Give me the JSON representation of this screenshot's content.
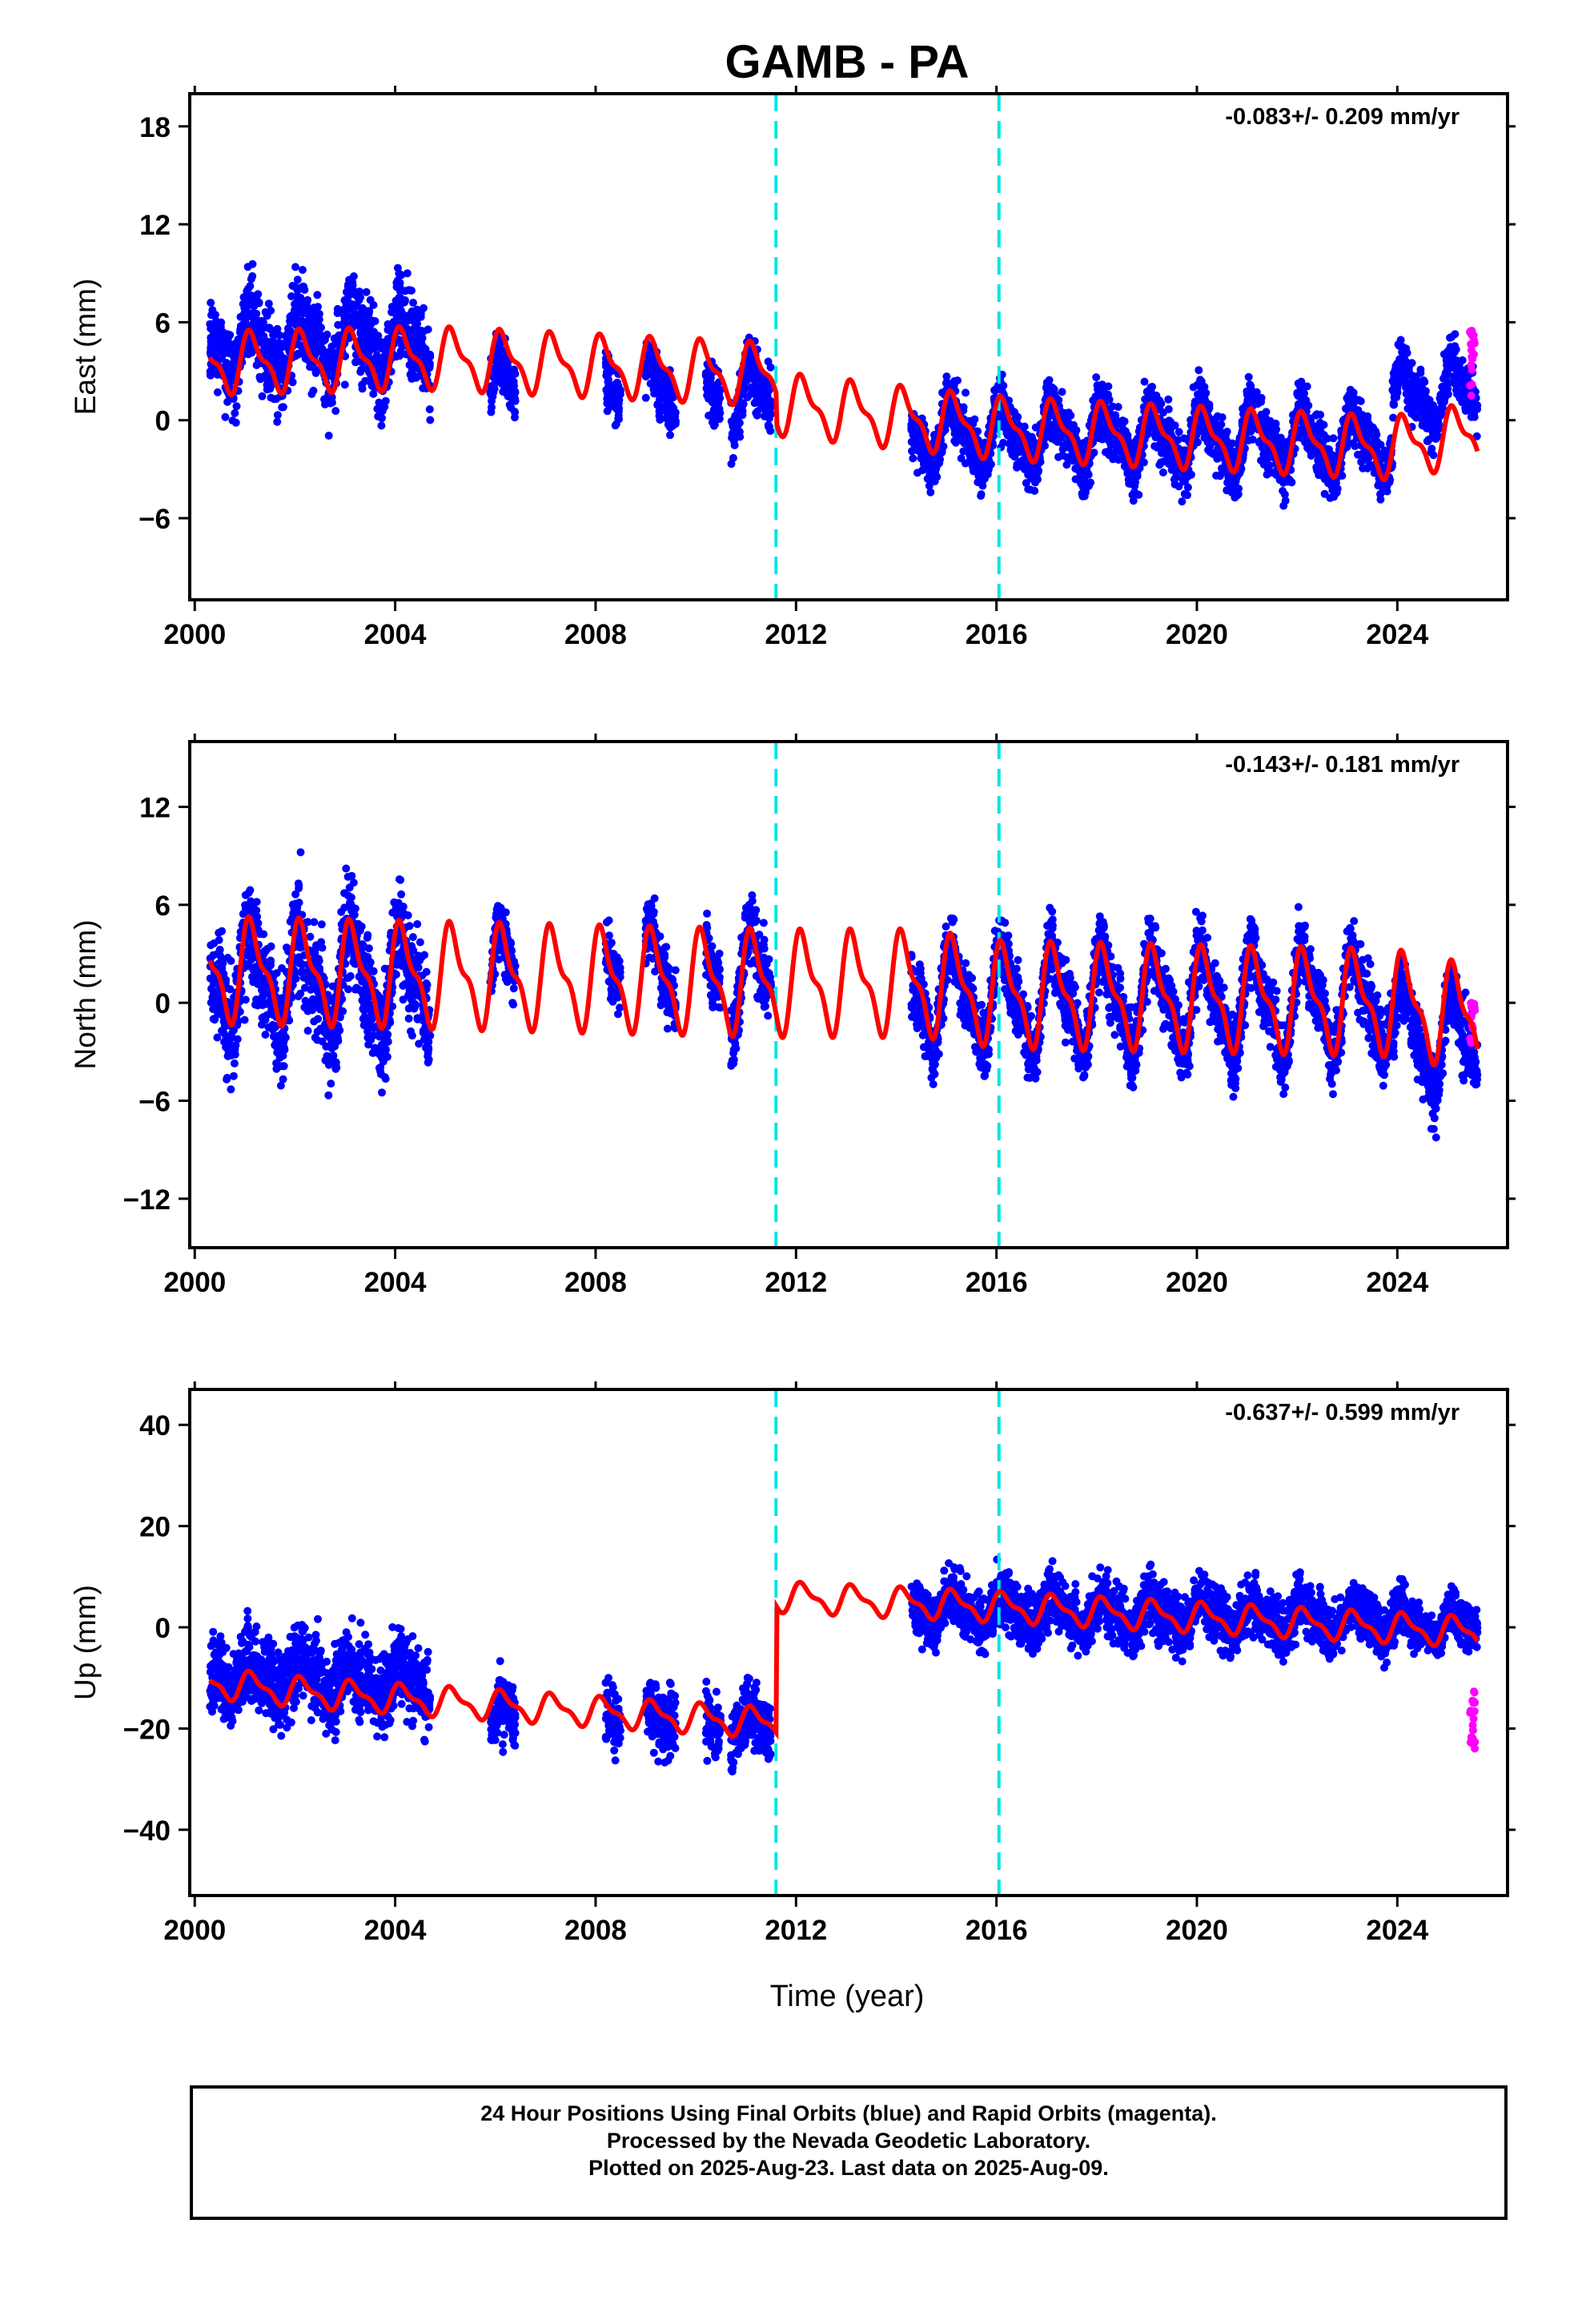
{
  "title": "GAMB - PA",
  "xlabel": "Time (year)",
  "footer": {
    "line1": "24 Hour Positions Using Final Orbits (blue) and Rapid Orbits (magenta).",
    "line2": "Processed by the Nevada Geodetic Laboratory.",
    "line3": "Plotted on 2025-Aug-23. Last data on 2025-Aug-09."
  },
  "colors": {
    "final": "#0000ff",
    "rapid": "#ff00ff",
    "model": "#ff0000",
    "breaks": "#00e5e5"
  },
  "chart_data": [
    {
      "type": "scatter",
      "ylabel": "East (mm)",
      "rate_text": "-0.083+/- 0.209 mm/yr",
      "xlim": [
        1999.9,
        2026.2
      ],
      "ylim": [
        -11,
        20
      ],
      "yticks": [
        -6,
        0,
        6,
        12,
        18
      ],
      "xticks": [
        2000,
        2004,
        2008,
        2012,
        2016,
        2020,
        2024
      ],
      "breaks": [
        2011.6,
        2016.05
      ],
      "data_segments": [
        [
          2000.3,
          2004.7
        ],
        [
          2005.9,
          2006.4
        ],
        [
          2008.2,
          2008.5
        ],
        [
          2009.0,
          2009.6
        ],
        [
          2010.2,
          2010.5
        ],
        [
          2010.7,
          2011.5
        ],
        [
          2014.3,
          2025.6
        ]
      ],
      "model": {
        "breakpoints": [
          {
            "x": 2000.3,
            "y": 3.5
          },
          {
            "x": 2004.7,
            "y": 3.8
          },
          {
            "x": 2011.6,
            "y": 2.8
          },
          {
            "x": 2011.62,
            "y": 1.0
          },
          {
            "x": 2016.05,
            "y": -0.5
          },
          {
            "x": 2023.9,
            "y": -1.7
          },
          {
            "x": 2025.6,
            "y": -0.8
          }
        ],
        "annual_amplitude": 1.9,
        "points_note": "piecewise trend + annual/semiannual terms"
      },
      "scatter_envelope": {
        "early_mean": 5.5,
        "early_spread": 3.3,
        "mid_mean": 0.5,
        "mid_spread": 2.2,
        "late_mean": -1.2,
        "late_spread": 2.2,
        "end_mean": 3.5,
        "end_spread": 2.0
      },
      "rapid": {
        "x": [
          2025.45,
          2025.55
        ],
        "y": [
          1.5,
          5.5
        ]
      }
    },
    {
      "type": "scatter",
      "ylabel": "North (mm)",
      "rate_text": "-0.143+/- 0.181 mm/yr",
      "xlim": [
        1999.9,
        2026.2
      ],
      "ylim": [
        -15,
        16
      ],
      "yticks": [
        -12,
        -6,
        0,
        6,
        12
      ],
      "xticks": [
        2000,
        2004,
        2008,
        2012,
        2016,
        2020,
        2024
      ],
      "breaks": [
        2011.6,
        2016.05
      ],
      "data_segments": [
        [
          2000.3,
          2004.7
        ],
        [
          2005.9,
          2006.4
        ],
        [
          2008.2,
          2008.5
        ],
        [
          2009.0,
          2009.6
        ],
        [
          2010.2,
          2010.5
        ],
        [
          2010.7,
          2011.5
        ],
        [
          2014.3,
          2025.6
        ]
      ],
      "model": {
        "breakpoints": [
          {
            "x": 2000.3,
            "y": 2.0
          },
          {
            "x": 2011.6,
            "y": 1.2
          },
          {
            "x": 2014.5,
            "y": 1.2
          },
          {
            "x": 2016.05,
            "y": 0.5
          },
          {
            "x": 2023.9,
            "y": 0.0
          },
          {
            "x": 2025.6,
            "y": -1.0
          }
        ],
        "annual_amplitude": 3.2
      },
      "scatter_envelope": {
        "early_mean": 1.0,
        "early_spread": 4.0,
        "mid_mean": 1.5,
        "mid_spread": 2.5,
        "late_mean": 0.0,
        "late_spread": 2.6,
        "end_mean": -3.5,
        "end_spread": 2.6
      },
      "rapid": {
        "x": [
          2025.45,
          2025.55
        ],
        "y": [
          -2.5,
          0
        ]
      }
    },
    {
      "type": "scatter",
      "ylabel": "Up (mm)",
      "rate_text": "-0.637+/- 0.599 mm/yr",
      "xlim": [
        1999.9,
        2026.2
      ],
      "ylim": [
        -53,
        47
      ],
      "yticks": [
        -40,
        -20,
        0,
        20,
        40
      ],
      "xticks": [
        2000,
        2004,
        2008,
        2012,
        2016,
        2020,
        2024
      ],
      "breaks": [
        2011.6,
        2016.05
      ],
      "data_segments": [
        [
          2000.3,
          2004.7
        ],
        [
          2005.9,
          2006.4
        ],
        [
          2008.2,
          2008.5
        ],
        [
          2009.0,
          2009.6
        ],
        [
          2010.2,
          2010.5
        ],
        [
          2010.7,
          2011.5
        ],
        [
          2014.3,
          2025.6
        ]
      ],
      "model": {
        "breakpoints": [
          {
            "x": 2000.3,
            "y": -11
          },
          {
            "x": 2002.3,
            "y": -13
          },
          {
            "x": 2011.6,
            "y": -19
          },
          {
            "x": 2011.62,
            "y": 6
          },
          {
            "x": 2016.05,
            "y": 4
          },
          {
            "x": 2025.6,
            "y": -1
          }
        ],
        "annual_amplitude": 3.0
      },
      "scatter_envelope": {
        "early_mean": -8,
        "early_spread": 10,
        "mid_mean": -20,
        "mid_spread": 8,
        "late_mean": 3,
        "late_spread": 7,
        "end_mean": 1,
        "end_spread": 6
      },
      "rapid": {
        "x": [
          2025.45,
          2025.55
        ],
        "y": [
          -25,
          -10
        ]
      }
    }
  ]
}
